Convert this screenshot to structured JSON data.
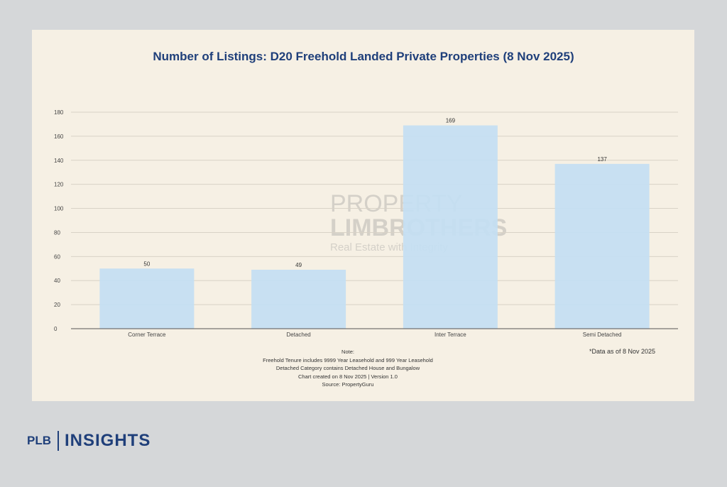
{
  "chart_data": {
    "type": "bar",
    "title": "Number of Listings: D20 Freehold Landed Private Properties (8 Nov 2025)",
    "categories": [
      "Corner Terrace",
      "Detached",
      "Inter Terrace",
      "Semi Detached"
    ],
    "values": [
      50,
      49,
      169,
      137
    ],
    "data_labels": [
      "50",
      "49",
      "169",
      "137"
    ],
    "ylim": [
      0,
      180
    ],
    "yticks": [
      0,
      20,
      40,
      60,
      80,
      100,
      120,
      140,
      160,
      180
    ],
    "grid": true,
    "xlabel": "",
    "ylabel": "",
    "bar_color": "#c3def3"
  },
  "notes": {
    "heading": "Note:",
    "lines": [
      "Freehold Tenure includes 9999 Year Leasehold and 999 Year Leasehold",
      "Detached Category contains Detached House and Bungalow",
      "Chart created on 8 Nov 2025 | Version 1.0",
      "Source: PropertyGuru"
    ],
    "data_as_of": "*Data as of 8 Nov 2025"
  },
  "watermark": {
    "line1": "PROPERTY",
    "line2": "LIMBROTHERS",
    "tagline": "Real Estate with Integrity"
  },
  "brand": {
    "left": "PLB",
    "right": "INSIGHTS",
    "color": "#1f3f7a"
  }
}
